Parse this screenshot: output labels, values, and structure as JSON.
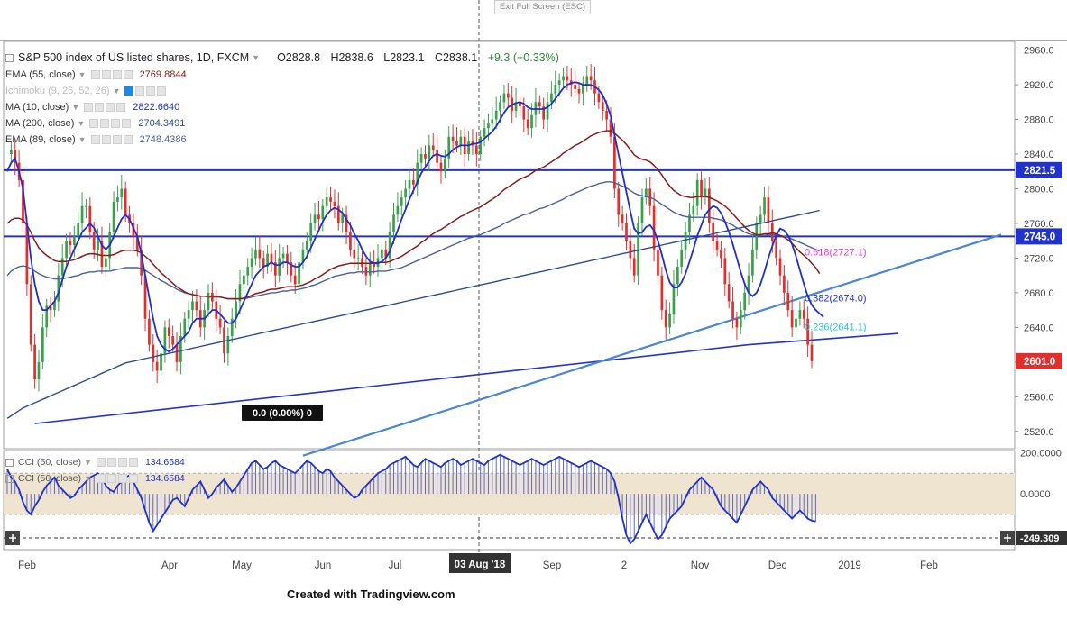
{
  "toolbar": {
    "exit_full_screen": "Exit Full Screen (ESC)"
  },
  "header": {
    "title": "S&P 500 index of US listed shares, 1D, FXCM",
    "ohlc": {
      "open": "O2828.8",
      "high": "H2838.6",
      "low": "L2823.1",
      "close": "C2838.1",
      "change": "+9.3 (+0.33%)"
    }
  },
  "indicators": [
    {
      "label": "EMA (55, close)",
      "value": "2769.8844",
      "color": "#8b1a1a"
    },
    {
      "label": "Ichimoku (9, 26, 52, 26)",
      "value": "",
      "color": "#999999",
      "active": true
    },
    {
      "label": "MA (10, close)",
      "value": "2822.6640",
      "color": "#1f2fcc"
    },
    {
      "label": "MA (200, close)",
      "value": "2704.3491",
      "color": "#2a4d8f"
    },
    {
      "label": "EMA (89, close)",
      "value": "2748.4386",
      "color": "#4a5f9e"
    }
  ],
  "oscillators": [
    {
      "label": "CCI (50, close)",
      "value": "134.6584"
    },
    {
      "label": "CCI (50, close)",
      "value": "134.6584"
    }
  ],
  "colors": {
    "bull": "#3aa04a",
    "bear": "#e0302e",
    "ma10": "#1f2fcc",
    "ema55": "#8b1a1a",
    "ema89": "#4a5f9e",
    "ma200": "#2a4d8f",
    "trend": "#4a86d8",
    "support": "#2233cc"
  },
  "chart_data": {
    "type": "candlestick",
    "ylim": [
      2500,
      2970
    ],
    "y_ticks": [
      "2960.0",
      "2920.0",
      "2880.0",
      "2840.0",
      "2800.0",
      "2760.0",
      "2720.0",
      "2680.0",
      "2640.0",
      "2600.0",
      "2560.0",
      "2520.0"
    ],
    "x_labels": [
      "Feb",
      "Apr",
      "May",
      "Jun",
      "Jul",
      "03 Aug '18",
      "Sep",
      "2",
      "Nov",
      "Dec",
      "2019",
      "Feb"
    ],
    "horizontal_levels": [
      {
        "value": 2821.5,
        "label": "2821.5"
      },
      {
        "value": 2745.0,
        "label": "2745.0"
      }
    ],
    "price_label": {
      "value": 2601.0,
      "label": "2601.0"
    },
    "fib_levels": [
      {
        "label": "0.618(2727.1)",
        "value": 2727.1
      },
      {
        "label": "0.382(2674.0)",
        "value": 2674.0
      },
      {
        "label": "0.236(2641.1)",
        "value": 2641.1
      },
      {
        "label": "0.0 (0.00%) 0",
        "value": 0
      }
    ],
    "close_series": [
      2840,
      2845,
      2830,
      2810,
      2760,
      2690,
      2620,
      2580,
      2600,
      2640,
      2665,
      2660,
      2670,
      2700,
      2720,
      2740,
      2735,
      2745,
      2760,
      2780,
      2780,
      2750,
      2730,
      2740,
      2710,
      2720,
      2750,
      2785,
      2790,
      2800,
      2770,
      2760,
      2745,
      2730,
      2700,
      2650,
      2620,
      2600,
      2590,
      2610,
      2640,
      2630,
      2620,
      2600,
      2630,
      2650,
      2660,
      2670,
      2660,
      2640,
      2660,
      2680,
      2670,
      2650,
      2640,
      2610,
      2630,
      2650,
      2670,
      2690,
      2700,
      2710,
      2720,
      2730,
      2720,
      2710,
      2725,
      2715,
      2700,
      2720,
      2725,
      2715,
      2700,
      2690,
      2715,
      2730,
      2740,
      2760,
      2770,
      2765,
      2780,
      2790,
      2785,
      2780,
      2760,
      2770,
      2750,
      2730,
      2720,
      2720,
      2710,
      2700,
      2715,
      2710,
      2720,
      2730,
      2720,
      2750,
      2770,
      2780,
      2790,
      2800,
      2810,
      2805,
      2830,
      2840,
      2835,
      2850,
      2845,
      2830,
      2820,
      2835,
      2860,
      2855,
      2850,
      2860,
      2840,
      2855,
      2850,
      2840,
      2860,
      2870,
      2875,
      2880,
      2890,
      2900,
      2910,
      2905,
      2890,
      2900,
      2895,
      2880,
      2870,
      2885,
      2900,
      2895,
      2880,
      2900,
      2910,
      2920,
      2925,
      2930,
      2925,
      2920,
      2915,
      2910,
      2920,
      2930,
      2925,
      2910,
      2900,
      2890,
      2880,
      2860,
      2800,
      2770,
      2760,
      2740,
      2720,
      2700,
      2760,
      2790,
      2800,
      2780,
      2730,
      2700,
      2660,
      2640,
      2655,
      2690,
      2710,
      2730,
      2750,
      2770,
      2780,
      2810,
      2790,
      2800,
      2760,
      2740,
      2730,
      2720,
      2690,
      2670,
      2650,
      2640,
      2660,
      2680,
      2700,
      2730,
      2760,
      2770,
      2790,
      2760,
      2740,
      2720,
      2700,
      2680,
      2660,
      2640,
      2650,
      2660,
      2650,
      2620,
      2601
    ],
    "ma10_series": [
      2820,
      2830,
      2835,
      2820,
      2800,
      2760,
      2720,
      2690,
      2670,
      2660,
      2660,
      2665,
      2670,
      2680,
      2695,
      2710,
      2720,
      2730,
      2740,
      2750,
      2755,
      2760,
      2755,
      2745,
      2735,
      2730,
      2735,
      2745,
      2755,
      2765,
      2770,
      2765,
      2755,
      2745,
      2725,
      2700,
      2675,
      2650,
      2630,
      2620,
      2615,
      2612,
      2615,
      2620,
      2625,
      2630,
      2635,
      2645,
      2650,
      2650,
      2650,
      2655,
      2660,
      2660,
      2655,
      2650,
      2645,
      2645,
      2650,
      2660,
      2670,
      2680,
      2690,
      2700,
      2705,
      2710,
      2712,
      2715,
      2712,
      2712,
      2715,
      2715,
      2712,
      2710,
      2710,
      2715,
      2722,
      2732,
      2742,
      2752,
      2762,
      2770,
      2775,
      2778,
      2776,
      2772,
      2765,
      2758,
      2748,
      2740,
      2730,
      2722,
      2716,
      2714,
      2714,
      2716,
      2720,
      2728,
      2740,
      2752,
      2765,
      2776,
      2788,
      2798,
      2808,
      2818,
      2825,
      2832,
      2838,
      2840,
      2838,
      2837,
      2840,
      2845,
      2848,
      2850,
      2850,
      2850,
      2852,
      2852,
      2854,
      2858,
      2862,
      2866,
      2872,
      2880,
      2888,
      2894,
      2897,
      2899,
      2900,
      2898,
      2894,
      2892,
      2892,
      2892,
      2892,
      2894,
      2898,
      2904,
      2910,
      2916,
      2920,
      2922,
      2923,
      2922,
      2920,
      2920,
      2920,
      2918,
      2914,
      2908,
      2898,
      2884,
      2862,
      2840,
      2818,
      2796,
      2774,
      2754,
      2748,
      2750,
      2756,
      2758,
      2752,
      2740,
      2724,
      2706,
      2692,
      2686,
      2686,
      2692,
      2702,
      2716,
      2730,
      2746,
      2758,
      2770,
      2776,
      2780,
      2778,
      2772,
      2762,
      2750,
      2736,
      2720,
      2704,
      2690,
      2680,
      2676,
      2680,
      2690,
      2704,
      2720,
      2734,
      2746,
      2754,
      2752,
      2746,
      2736,
      2722,
      2706,
      2690,
      2676,
      2666,
      2660,
      2656,
      2652
    ],
    "ema55_series": [
      2760,
      2764,
      2766,
      2766,
      2764,
      2758,
      2750,
      2740,
      2732,
      2727,
      2723,
      2720,
      2717,
      2716,
      2716,
      2716,
      2717,
      2718,
      2720,
      2722,
      2724,
      2725,
      2725,
      2724,
      2723,
      2723,
      2723,
      2724,
      2726,
      2728,
      2729,
      2729,
      2729,
      2728,
      2726,
      2722,
      2718,
      2713,
      2708,
      2703,
      2699,
      2695,
      2691,
      2687,
      2684,
      2681,
      2679,
      2678,
      2677,
      2676,
      2676,
      2676,
      2676,
      2676,
      2675,
      2674,
      2673,
      2673,
      2673,
      2673,
      2674,
      2675,
      2677,
      2679,
      2680,
      2681,
      2683,
      2684,
      2684,
      2685,
      2686,
      2687,
      2687,
      2687,
      2688,
      2689,
      2691,
      2693,
      2696,
      2698,
      2701,
      2704,
      2707,
      2709,
      2711,
      2712,
      2713,
      2714,
      2714,
      2714,
      2714,
      2714,
      2714,
      2714,
      2715,
      2715,
      2715,
      2716,
      2718,
      2720,
      2722,
      2725,
      2728,
      2731,
      2734,
      2738,
      2741,
      2745,
      2748,
      2751,
      2753,
      2756,
      2759,
      2762,
      2765,
      2768,
      2770,
      2773,
      2775,
      2777,
      2779,
      2782,
      2785,
      2788,
      2791,
      2795,
      2799,
      2802,
      2805,
      2808,
      2811,
      2813,
      2815,
      2818,
      2821,
      2823,
      2825,
      2828,
      2831,
      2834,
      2837,
      2841,
      2844,
      2847,
      2850,
      2852,
      2855,
      2858,
      2861,
      2863,
      2865,
      2866,
      2867,
      2867,
      2864,
      2860,
      2856,
      2851,
      2845,
      2839,
      2836,
      2834,
      2833,
      2831,
      2827,
      2822,
      2816,
      2809,
      2803,
      2798,
      2795,
      2792,
      2791,
      2790,
      2790,
      2791,
      2791,
      2791,
      2790,
      2788,
      2786,
      2783,
      2780,
      2776,
      2771,
      2766,
      2761,
      2756,
      2752,
      2749,
      2747,
      2747,
      2748,
      2748,
      2749,
      2748,
      2746,
      2744,
      2741,
      2737,
      2732,
      2727,
      2723,
      2719,
      2714,
      2709,
      2702
    ],
    "ema89_series": [
      2700,
      2705,
      2708,
      2710,
      2711,
      2710,
      2708,
      2705,
      2702,
      2700,
      2698,
      2697,
      2696,
      2696,
      2696,
      2697,
      2698,
      2699,
      2700,
      2702,
      2703,
      2704,
      2704,
      2705,
      2705,
      2705,
      2705,
      2706,
      2707,
      2708,
      2709,
      2709,
      2709,
      2709,
      2708,
      2706,
      2703,
      2700,
      2697,
      2694,
      2692,
      2689,
      2687,
      2684,
      2682,
      2680,
      2679,
      2678,
      2677,
      2676,
      2676,
      2675,
      2675,
      2675,
      2675,
      2674,
      2673,
      2673,
      2673,
      2673,
      2673,
      2674,
      2675,
      2676,
      2677,
      2678,
      2679,
      2680,
      2680,
      2681,
      2682,
      2682,
      2683,
      2683,
      2684,
      2685,
      2686,
      2688,
      2689,
      2691,
      2693,
      2695,
      2697,
      2699,
      2700,
      2701,
      2702,
      2703,
      2703,
      2704,
      2704,
      2704,
      2704,
      2704,
      2705,
      2705,
      2705,
      2706,
      2707,
      2708,
      2709,
      2711,
      2713,
      2715,
      2717,
      2719,
      2721,
      2723,
      2725,
      2727,
      2729,
      2731,
      2733,
      2735,
      2737,
      2739,
      2741,
      2743,
      2744,
      2746,
      2747,
      2749,
      2751,
      2753,
      2755,
      2757,
      2760,
      2762,
      2764,
      2766,
      2768,
      2770,
      2771,
      2773,
      2775,
      2777,
      2778,
      2780,
      2782,
      2784,
      2786,
      2788,
      2791,
      2793,
      2795,
      2797,
      2799,
      2801,
      2803,
      2804,
      2806,
      2807,
      2808,
      2808,
      2807,
      2805,
      2803,
      2801,
      2798,
      2795,
      2793,
      2792,
      2791,
      2790,
      2788,
      2785,
      2782,
      2779,
      2776,
      2773,
      2771,
      2769,
      2768,
      2767,
      2767,
      2767,
      2767,
      2767,
      2767,
      2766,
      2765,
      2764,
      2762,
      2760,
      2758,
      2755,
      2753,
      2750,
      2748,
      2747,
      2746,
      2746,
      2746,
      2747,
      2747,
      2747,
      2746,
      2745,
      2744,
      2742,
      2740,
      2738,
      2736,
      2734,
      2732,
      2730,
      2728
    ],
    "ma200_series": [
      2535,
      2538,
      2541,
      2544,
      2547,
      2549,
      2551,
      2553,
      2555,
      2557,
      2559,
      2561,
      2563,
      2565,
      2567,
      2569,
      2571,
      2573,
      2575,
      2577,
      2579,
      2581,
      2583,
      2585,
      2587,
      2589,
      2591,
      2593,
      2595,
      2597,
      2599,
      2600,
      2601,
      2602,
      2603,
      2604,
      2605,
      2606,
      2607,
      2608,
      2609,
      2610,
      2611,
      2612,
      2613,
      2614,
      2615,
      2616,
      2617,
      2618,
      2619,
      2620,
      2621,
      2622,
      2623,
      2624,
      2625,
      2626,
      2627,
      2628,
      2629,
      2630,
      2631,
      2632,
      2633,
      2634,
      2635,
      2636,
      2637,
      2638,
      2639,
      2640,
      2641,
      2642,
      2643,
      2644,
      2645,
      2646,
      2647,
      2648,
      2649,
      2650,
      2651,
      2652,
      2653,
      2654,
      2655,
      2656,
      2657,
      2658,
      2659,
      2660,
      2661,
      2662,
      2663,
      2664,
      2665,
      2666,
      2667,
      2668,
      2669,
      2670,
      2671,
      2672,
      2673,
      2674,
      2675,
      2676,
      2677,
      2678,
      2679,
      2680,
      2681,
      2682,
      2683,
      2684,
      2685,
      2686,
      2687,
      2688,
      2689,
      2690,
      2691,
      2692,
      2693,
      2694,
      2695,
      2696,
      2697,
      2698,
      2699,
      2700,
      2701,
      2702,
      2703,
      2704,
      2705,
      2706,
      2707,
      2708,
      2709,
      2710,
      2711,
      2712,
      2713,
      2714,
      2715,
      2716,
      2717,
      2718,
      2719,
      2720,
      2721,
      2722,
      2723,
      2724,
      2725,
      2726,
      2727,
      2728,
      2729,
      2730,
      2731,
      2732,
      2733,
      2734,
      2735,
      2736,
      2737,
      2738,
      2739,
      2740,
      2741,
      2742,
      2743,
      2744,
      2745,
      2746,
      2747,
      2748,
      2749,
      2750,
      2751,
      2752,
      2753,
      2754,
      2755,
      2756,
      2757,
      2758,
      2759,
      2760,
      2761,
      2762,
      2763,
      2764,
      2765,
      2766,
      2767,
      2768,
      2769,
      2770,
      2771,
      2772,
      2773,
      2774,
      2775
    ],
    "cci_series": [
      120,
      80,
      60,
      20,
      -40,
      -80,
      -100,
      -60,
      -30,
      10,
      40,
      60,
      80,
      40,
      20,
      0,
      -20,
      -10,
      20,
      40,
      60,
      80,
      90,
      100,
      80,
      40,
      20,
      10,
      40,
      60,
      80,
      90,
      60,
      20,
      -20,
      -80,
      -140,
      -180,
      -150,
      -120,
      -90,
      -60,
      -30,
      -20,
      -40,
      -60,
      -20,
      20,
      40,
      60,
      20,
      -20,
      0,
      30,
      50,
      70,
      40,
      10,
      30,
      60,
      90,
      120,
      150,
      160,
      140,
      120,
      130,
      150,
      160,
      140,
      130,
      120,
      110,
      100,
      120,
      140,
      160,
      150,
      130,
      110,
      100,
      120,
      110,
      80,
      60,
      40,
      20,
      0,
      -20,
      -10,
      20,
      40,
      60,
      80,
      100,
      110,
      120,
      140,
      150,
      160,
      170,
      180,
      160,
      140,
      130,
      150,
      170,
      160,
      150,
      140,
      130,
      150,
      160,
      170,
      160,
      140,
      150,
      160,
      170,
      160,
      150,
      140,
      160,
      170,
      180,
      190,
      180,
      170,
      160,
      150,
      140,
      150,
      160,
      170,
      160,
      150,
      140,
      150,
      160,
      170,
      180,
      170,
      160,
      150,
      140,
      130,
      140,
      150,
      160,
      150,
      140,
      130,
      120,
      100,
      60,
      -20,
      -120,
      -200,
      -240,
      -220,
      -180,
      -140,
      -100,
      -140,
      -180,
      -220,
      -200,
      -160,
      -120,
      -100,
      -80,
      -60,
      -20,
      20,
      40,
      60,
      80,
      60,
      40,
      20,
      -20,
      -60,
      -80,
      -100,
      -120,
      -140,
      -100,
      -60,
      -20,
      20,
      40,
      60,
      40,
      20,
      -20,
      -40,
      -60,
      -80,
      -100,
      -120,
      -100,
      -80,
      -100,
      -120,
      -130,
      -134
    ]
  }
}
